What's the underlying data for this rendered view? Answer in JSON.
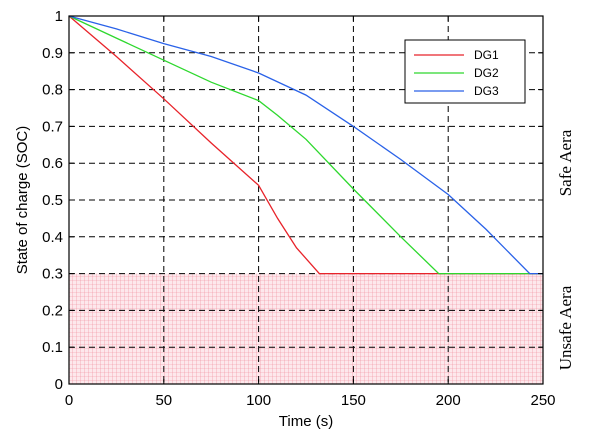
{
  "chart_data": {
    "type": "line",
    "xlabel": "Time (s)",
    "ylabel": "State of charge (SOC)",
    "xlim": [
      0,
      250
    ],
    "ylim": [
      0,
      1
    ],
    "x_ticks": [
      "0",
      "50",
      "100",
      "150",
      "200",
      "250"
    ],
    "y_ticks": [
      "0",
      "0.1",
      "0.2",
      "0.3",
      "0.4",
      "0.5",
      "0.6",
      "0.7",
      "0.8",
      "0.9",
      "1"
    ],
    "grid": true,
    "legend_position": "top-right",
    "series": [
      {
        "name": "DG1",
        "color": "#e8232a",
        "points": [
          [
            0,
            1.0
          ],
          [
            25,
            0.89
          ],
          [
            50,
            0.775
          ],
          [
            75,
            0.655
          ],
          [
            100,
            0.54
          ],
          [
            110,
            0.45
          ],
          [
            120,
            0.37
          ],
          [
            132,
            0.3
          ],
          [
            250,
            0.3
          ]
        ]
      },
      {
        "name": "DG2",
        "color": "#2ed82e",
        "points": [
          [
            0,
            1.0
          ],
          [
            25,
            0.94
          ],
          [
            50,
            0.88
          ],
          [
            75,
            0.82
          ],
          [
            100,
            0.77
          ],
          [
            110,
            0.73
          ],
          [
            125,
            0.665
          ],
          [
            150,
            0.53
          ],
          [
            175,
            0.4
          ],
          [
            195,
            0.3
          ],
          [
            250,
            0.3
          ]
        ]
      },
      {
        "name": "DG3",
        "color": "#2a62e8",
        "points": [
          [
            0,
            1.0
          ],
          [
            25,
            0.965
          ],
          [
            50,
            0.925
          ],
          [
            75,
            0.89
          ],
          [
            100,
            0.845
          ],
          [
            125,
            0.785
          ],
          [
            150,
            0.7
          ],
          [
            175,
            0.61
          ],
          [
            200,
            0.515
          ],
          [
            220,
            0.42
          ],
          [
            243,
            0.3
          ],
          [
            250,
            0.3
          ]
        ]
      }
    ],
    "regions": [
      {
        "label": "Safe Aera",
        "y_range": [
          0.3,
          1.0
        ],
        "fill": "none"
      },
      {
        "label": "Unsafe Aera",
        "y_range": [
          0,
          0.3
        ],
        "fill": "#f7b8c0"
      }
    ]
  }
}
